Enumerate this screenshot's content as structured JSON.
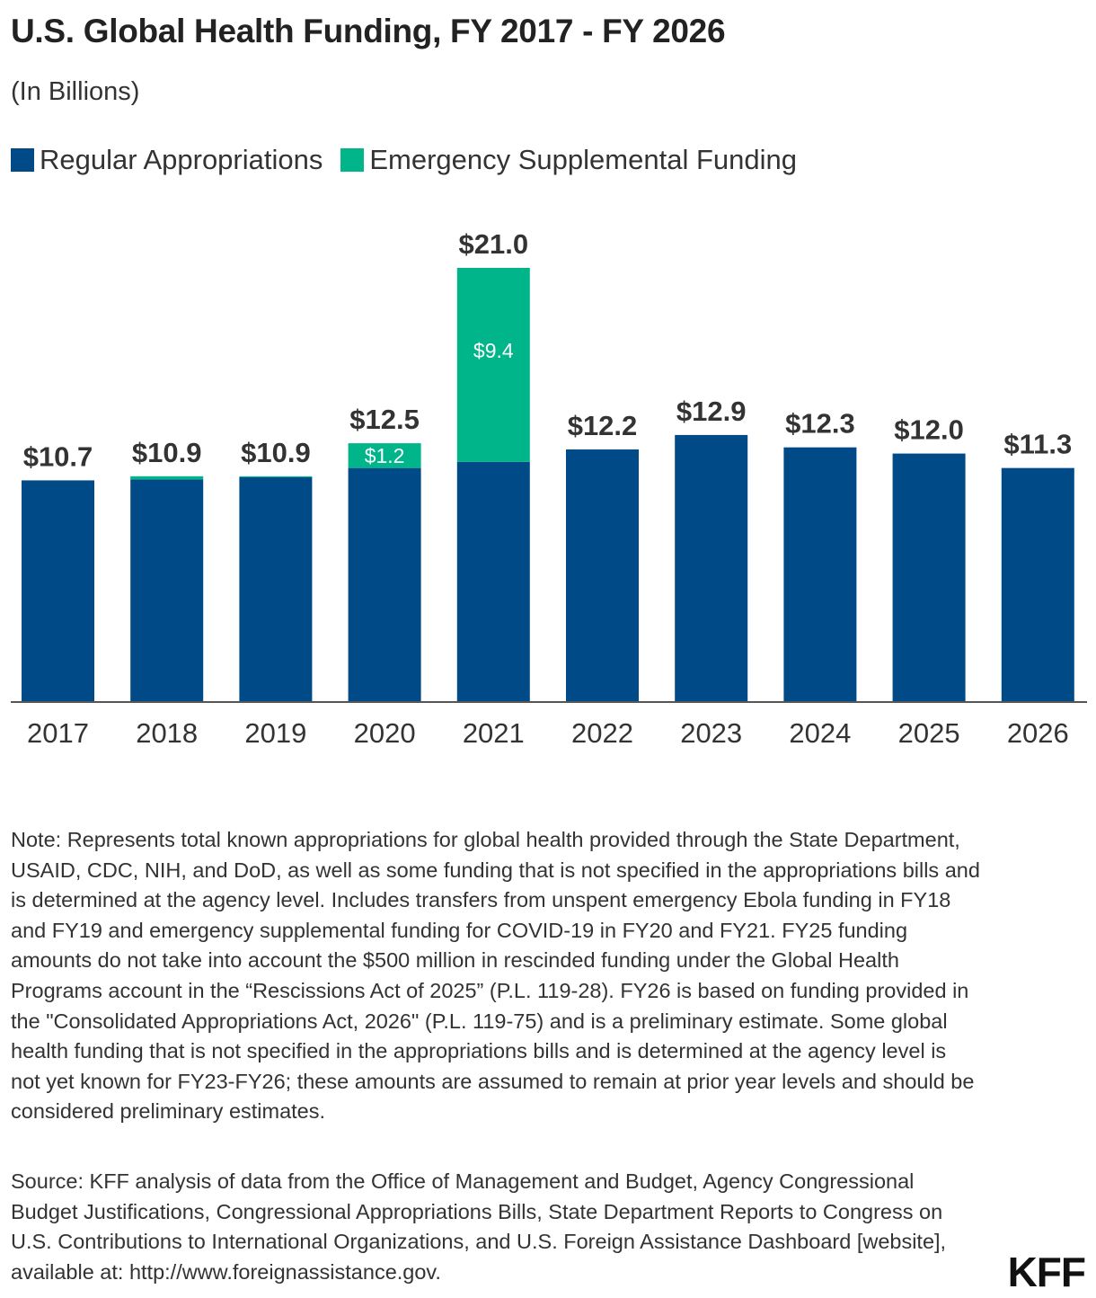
{
  "header": {
    "title": "U.S. Global Health Funding, FY 2017 - FY 2026",
    "subtitle": "(In Billions)"
  },
  "legend": {
    "items": [
      {
        "label": "Regular Appropriations",
        "color": "#004A87"
      },
      {
        "label": "Emergency Supplemental Funding",
        "color": "#00B58A"
      }
    ]
  },
  "chart_data": {
    "type": "bar",
    "stacked": true,
    "categories": [
      "2017",
      "2018",
      "2019",
      "2020",
      "2021",
      "2022",
      "2023",
      "2024",
      "2025",
      "2026"
    ],
    "series": [
      {
        "name": "Regular Appropriations",
        "color": "#004A87",
        "values": [
          10.7,
          10.75,
          10.85,
          11.3,
          11.6,
          12.2,
          12.9,
          12.3,
          12.0,
          11.3
        ]
      },
      {
        "name": "Emergency Supplemental Funding",
        "color": "#00B58A",
        "values": [
          0,
          0.15,
          0.05,
          1.2,
          9.4,
          0,
          0,
          0,
          0,
          0
        ],
        "labels": [
          "",
          "",
          "",
          "$1.2",
          "$9.4",
          "",
          "",
          "",
          "",
          ""
        ]
      }
    ],
    "total_labels": [
      "$10.7",
      "$10.9",
      "$10.9",
      "$12.5",
      "$21.0",
      "$12.2",
      "$12.9",
      "$12.3",
      "$12.0",
      "$11.3"
    ],
    "ylim": [
      0,
      21
    ],
    "grid": false
  },
  "notes": {
    "note": "Note: Represents total known appropriations for global health provided through the State Department, USAID, CDC, NIH, and DoD, as well as some funding that is not specified in the appropriations bills and is determined at the agency level. Includes transfers from unspent emergency Ebola funding in FY18 and FY19 and emergency supplemental funding for COVID-19 in FY20 and FY21. FY25 funding amounts do not take into account the $500 million in rescinded funding under the Global Health Programs account in the “Rescissions Act of 2025” (P.L. 119-28). FY26 is based on funding provided in the \"Consolidated Appropriations Act, 2026\" (P.L. 119-75) and is a preliminary estimate. Some global health funding that is not specified in the appropriations bills and is determined at the agency level is not yet known for FY23-FY26; these amounts are assumed to remain at prior year levels and should be considered preliminary estimates.",
    "source": "Source: KFF analysis of data from the Office of Management and Budget, Agency Congressional Budget Justifications, Congressional Appropriations Bills, State Department Reports to Congress on U.S. Contributions to International Organizations, and U.S. Foreign Assistance Dashboard [website], available at: http://www.foreignassistance.gov."
  },
  "logo": {
    "text": "KFF"
  }
}
